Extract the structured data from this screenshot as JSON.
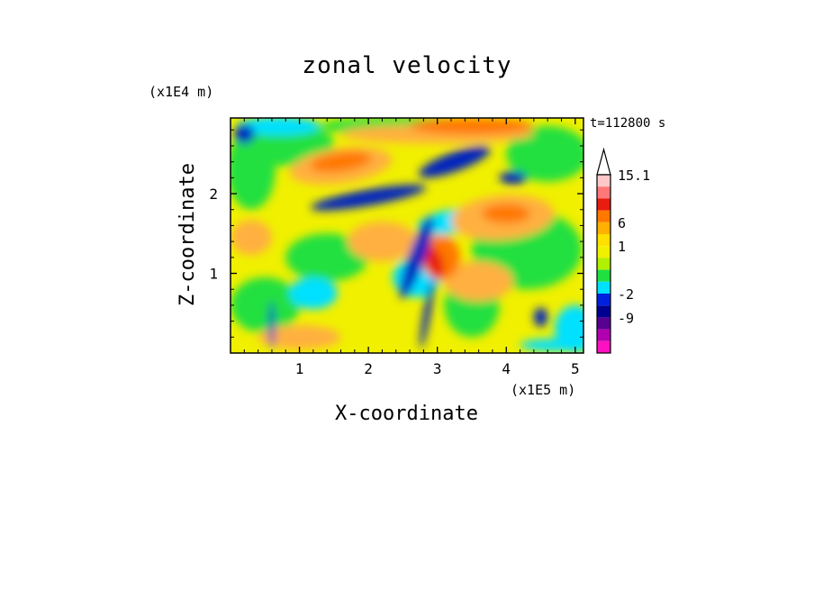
{
  "chart_data": {
    "type": "heatmap",
    "title": "zonal velocity",
    "xlabel": "X-coordinate",
    "ylabel": "Z-coordinate",
    "x_unit_label": "(x1E5 m)",
    "y_unit_label": "(x1E4 m)",
    "time_label": "t=112800 s",
    "xlim": [
      0,
      5.12
    ],
    "ylim": [
      0,
      2.95
    ],
    "x_ticks": [
      1,
      2,
      3,
      4,
      5
    ],
    "y_ticks": [
      1,
      2
    ],
    "x_tick_labels": [
      "1",
      "2",
      "3",
      "4",
      "5"
    ],
    "y_tick_labels": [
      "1",
      "2"
    ],
    "grid": false,
    "colorbar": {
      "labels": [
        "15.1",
        "6",
        "1",
        "-2",
        "-9"
      ],
      "label_values": [
        15.1,
        6,
        1,
        -2,
        -9
      ],
      "colors_top_to_bottom": [
        "#ffc8c8",
        "#ff7878",
        "#e81c10",
        "#ff7800",
        "#ffb000",
        "#ffe000",
        "#f0f000",
        "#b0f000",
        "#20e040",
        "#00e0ff",
        "#0020e0",
        "#000090",
        "#580090",
        "#b000b0",
        "#ff10c0"
      ],
      "extend_top": true
    },
    "colors": {
      "deep_blue": "#0020c0",
      "cyan": "#00e0ff",
      "green": "#20e040",
      "yellow": "#f0f000",
      "light_orange": "#ffb040",
      "orange": "#ff7800",
      "red": "#e81c10"
    },
    "features": [
      {
        "x": 1.6,
        "z": 2.4,
        "value": 6
      },
      {
        "x": 2.0,
        "z": 1.95,
        "value": -9
      },
      {
        "x": 2.95,
        "z": 1.15,
        "value": 10
      },
      {
        "x": 3.25,
        "z": 2.4,
        "value": -9
      },
      {
        "x": 3.95,
        "z": 1.7,
        "value": 6
      }
    ]
  }
}
